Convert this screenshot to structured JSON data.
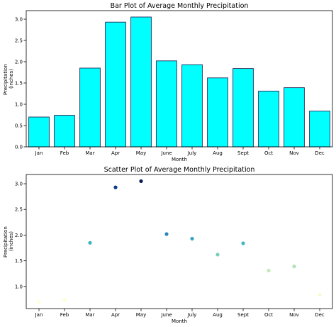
{
  "chart_data": [
    {
      "type": "bar",
      "title": "Bar Plot of Average Monthly Precipitation",
      "xlabel": "Month",
      "ylabel": [
        "Precipitation",
        "(inches)"
      ],
      "categories": [
        "Jan",
        "Feb",
        "Mar",
        "Apr",
        "May",
        "June",
        "July",
        "Aug",
        "Sept",
        "Oct",
        "Nov",
        "Dec"
      ],
      "values": [
        0.7,
        0.74,
        1.85,
        2.93,
        3.05,
        2.02,
        1.93,
        1.62,
        1.84,
        1.31,
        1.39,
        0.84
      ],
      "ylim": [
        0,
        3.2
      ],
      "yticks": [
        0.0,
        0.5,
        1.0,
        1.5,
        2.0,
        2.5,
        3.0
      ],
      "ytick_labels": [
        "0.0",
        "0.5",
        "1.0",
        "1.5",
        "2.0",
        "2.5",
        "3.0"
      ],
      "grid": false,
      "colors": {
        "bar_fill": "#00ffff",
        "bar_edge": "#1f2a5a"
      }
    },
    {
      "type": "scatter",
      "title": "Scatter Plot of Average Monthly Precipitation",
      "xlabel": "Month",
      "ylabel": [
        "Precipitation",
        "(inches)"
      ],
      "categories": [
        "Jan",
        "Feb",
        "Mar",
        "Apr",
        "May",
        "June",
        "July",
        "Aug",
        "Sept",
        "Oct",
        "Nov",
        "Dec"
      ],
      "values": [
        0.7,
        0.74,
        1.85,
        2.93,
        3.05,
        2.02,
        1.93,
        1.62,
        1.84,
        1.31,
        1.39,
        0.84
      ],
      "ylim": [
        0.57,
        3.18
      ],
      "yticks": [
        1.0,
        1.5,
        2.0,
        2.5,
        3.0
      ],
      "ytick_labels": [
        "1.0",
        "1.5",
        "2.0",
        "2.5",
        "3.0"
      ],
      "grid": false,
      "colormap": "YlGnBu",
      "point_colors": [
        "#ffffd9",
        "#fdfed5",
        "#3fb5c4",
        "#0f3a85",
        "#081d58",
        "#2c87bd",
        "#37a4c3",
        "#79cebb",
        "#40b6c4",
        "#c6e9b4",
        "#b4e2b6",
        "#f9fcd0"
      ]
    }
  ]
}
